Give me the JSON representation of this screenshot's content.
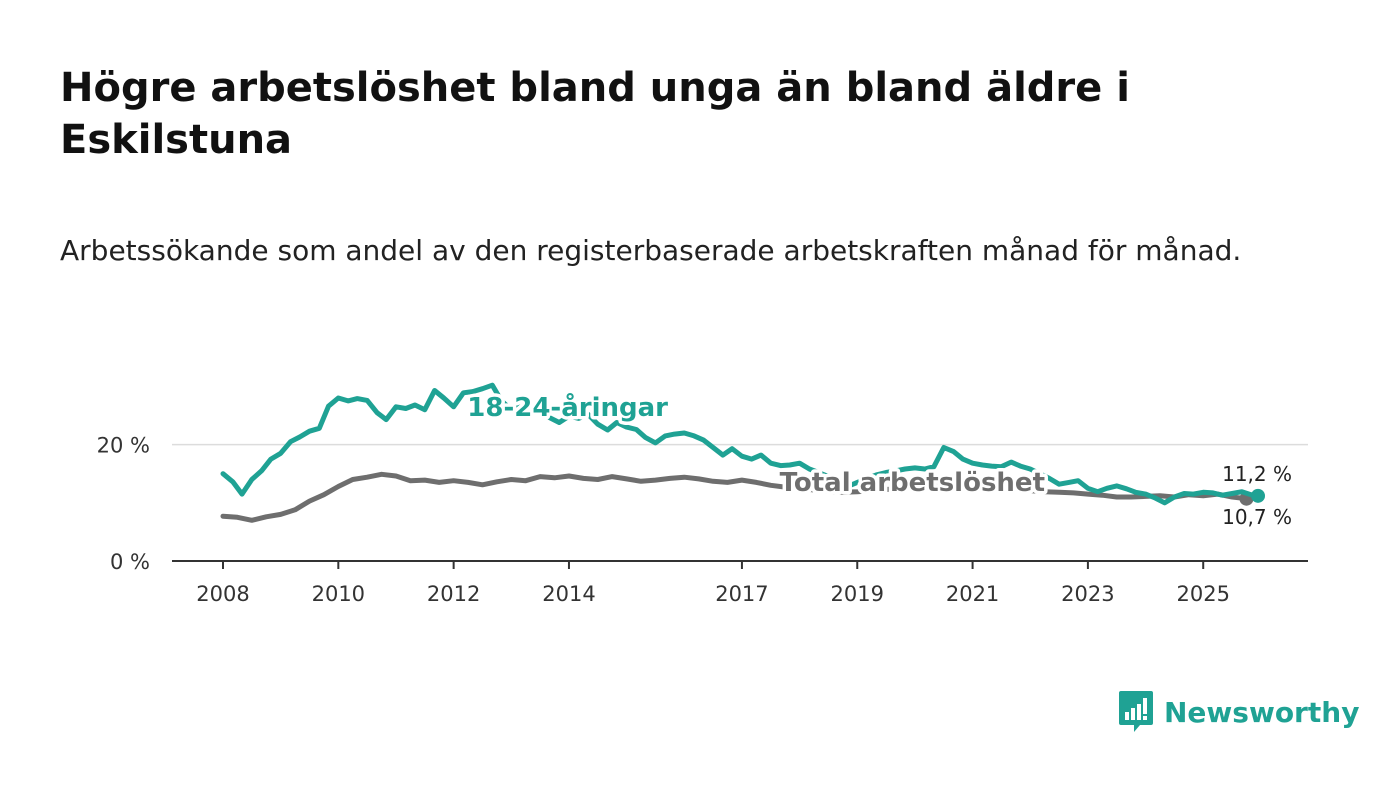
{
  "header": {
    "title": "Högre arbetslöshet bland unga än bland äldre i Eskilstuna",
    "subtitle": "Arbetssökande som andel av den registerbaserade arbetskraften månad för månad."
  },
  "brand": {
    "name": "Newsworthy",
    "color": "#1fa294",
    "icon": "bar-chart-speech-icon"
  },
  "chart_data": {
    "type": "line",
    "title": "Högre arbetslöshet bland unga än bland äldre i Eskilstuna",
    "subtitle": "Arbetssökande som andel av den registerbaserade arbetskraften månad för månad.",
    "xlabel": "",
    "ylabel": "",
    "xlim": [
      2008.0,
      2025.95
    ],
    "ylim": [
      0,
      33
    ],
    "grid": true,
    "legend": "inline labels",
    "y_ticks": [
      {
        "value": 0,
        "label": "0 %"
      },
      {
        "value": 20,
        "label": "20 %"
      }
    ],
    "x_ticks": [
      {
        "value": 2008,
        "label": "2008"
      },
      {
        "value": 2010,
        "label": "2010"
      },
      {
        "value": 2012,
        "label": "2012"
      },
      {
        "value": 2014,
        "label": "2014"
      },
      {
        "value": 2017,
        "label": "2017"
      },
      {
        "value": 2019,
        "label": "2019"
      },
      {
        "value": 2021,
        "label": "2021"
      },
      {
        "value": 2023,
        "label": "2023"
      },
      {
        "value": 2025,
        "label": "2025"
      }
    ],
    "series": [
      {
        "name": "Total arbetslöshet",
        "label": "Total arbetslöshet",
        "color": "#6e6e6e",
        "end_label": "10,7 %",
        "points": [
          [
            2008.0,
            7.7
          ],
          [
            2008.25,
            7.5
          ],
          [
            2008.5,
            7.0
          ],
          [
            2008.75,
            7.6
          ],
          [
            2009.0,
            8.0
          ],
          [
            2009.25,
            8.8
          ],
          [
            2009.5,
            10.3
          ],
          [
            2009.75,
            11.4
          ],
          [
            2010.0,
            12.8
          ],
          [
            2010.25,
            14.0
          ],
          [
            2010.5,
            14.4
          ],
          [
            2010.75,
            14.9
          ],
          [
            2011.0,
            14.6
          ],
          [
            2011.25,
            13.8
          ],
          [
            2011.5,
            13.9
          ],
          [
            2011.75,
            13.5
          ],
          [
            2012.0,
            13.8
          ],
          [
            2012.25,
            13.5
          ],
          [
            2012.5,
            13.1
          ],
          [
            2012.75,
            13.6
          ],
          [
            2013.0,
            14.0
          ],
          [
            2013.25,
            13.8
          ],
          [
            2013.5,
            14.5
          ],
          [
            2013.75,
            14.3
          ],
          [
            2014.0,
            14.6
          ],
          [
            2014.25,
            14.2
          ],
          [
            2014.5,
            14.0
          ],
          [
            2014.75,
            14.5
          ],
          [
            2015.0,
            14.1
          ],
          [
            2015.25,
            13.7
          ],
          [
            2015.5,
            13.9
          ],
          [
            2015.75,
            14.2
          ],
          [
            2016.0,
            14.4
          ],
          [
            2016.25,
            14.1
          ],
          [
            2016.5,
            13.7
          ],
          [
            2016.75,
            13.5
          ],
          [
            2017.0,
            13.9
          ],
          [
            2017.25,
            13.5
          ],
          [
            2017.5,
            13.0
          ],
          [
            2017.75,
            12.7
          ],
          [
            2018.0,
            12.5
          ],
          [
            2018.25,
            12.2
          ],
          [
            2018.5,
            12.0
          ],
          [
            2018.75,
            11.8
          ],
          [
            2019.0,
            11.9
          ],
          [
            2019.25,
            12.1
          ],
          [
            2019.5,
            12.3
          ],
          [
            2019.75,
            12.4
          ],
          [
            2020.0,
            12.6
          ],
          [
            2020.25,
            13.2
          ],
          [
            2020.5,
            13.6
          ],
          [
            2020.75,
            13.3
          ],
          [
            2021.0,
            13.0
          ],
          [
            2021.25,
            12.8
          ],
          [
            2021.5,
            12.5
          ],
          [
            2021.75,
            12.3
          ],
          [
            2022.0,
            12.1
          ],
          [
            2022.25,
            11.9
          ],
          [
            2022.5,
            11.8
          ],
          [
            2022.75,
            11.7
          ],
          [
            2023.0,
            11.5
          ],
          [
            2023.25,
            11.3
          ],
          [
            2023.5,
            11.0
          ],
          [
            2023.75,
            11.0
          ],
          [
            2024.0,
            11.1
          ],
          [
            2024.25,
            11.2
          ],
          [
            2024.5,
            11.0
          ],
          [
            2024.75,
            11.4
          ],
          [
            2025.0,
            11.2
          ],
          [
            2025.25,
            11.5
          ],
          [
            2025.5,
            11.0
          ],
          [
            2025.75,
            10.7
          ]
        ]
      },
      {
        "name": "18-24-åringar",
        "label": "18-24-åringar",
        "color": "#1fa294",
        "end_label": "11,2 %",
        "points": [
          [
            2008.0,
            15.0
          ],
          [
            2008.17,
            13.6
          ],
          [
            2008.33,
            11.5
          ],
          [
            2008.5,
            14.0
          ],
          [
            2008.67,
            15.5
          ],
          [
            2008.83,
            17.5
          ],
          [
            2009.0,
            18.5
          ],
          [
            2009.17,
            20.5
          ],
          [
            2009.33,
            21.3
          ],
          [
            2009.5,
            22.3
          ],
          [
            2009.67,
            22.8
          ],
          [
            2009.83,
            26.6
          ],
          [
            2010.0,
            28.0
          ],
          [
            2010.17,
            27.5
          ],
          [
            2010.33,
            27.9
          ],
          [
            2010.5,
            27.6
          ],
          [
            2010.67,
            25.5
          ],
          [
            2010.83,
            24.3
          ],
          [
            2011.0,
            26.5
          ],
          [
            2011.17,
            26.2
          ],
          [
            2011.33,
            26.8
          ],
          [
            2011.5,
            26.0
          ],
          [
            2011.67,
            29.3
          ],
          [
            2011.83,
            28.0
          ],
          [
            2012.0,
            26.5
          ],
          [
            2012.17,
            28.9
          ],
          [
            2012.33,
            29.1
          ],
          [
            2012.5,
            29.6
          ],
          [
            2012.67,
            30.2
          ],
          [
            2012.83,
            27.5
          ],
          [
            2013.0,
            26.0
          ],
          [
            2013.17,
            26.5
          ],
          [
            2013.33,
            26.0
          ],
          [
            2013.5,
            25.5
          ],
          [
            2013.67,
            24.6
          ],
          [
            2013.83,
            23.8
          ],
          [
            2014.0,
            24.9
          ],
          [
            2014.17,
            24.5
          ],
          [
            2014.33,
            25.2
          ],
          [
            2014.5,
            23.5
          ],
          [
            2014.67,
            22.5
          ],
          [
            2014.83,
            23.8
          ],
          [
            2015.0,
            23.0
          ],
          [
            2015.17,
            22.6
          ],
          [
            2015.33,
            21.2
          ],
          [
            2015.5,
            20.3
          ],
          [
            2015.67,
            21.5
          ],
          [
            2015.83,
            21.8
          ],
          [
            2016.0,
            22.0
          ],
          [
            2016.17,
            21.5
          ],
          [
            2016.33,
            20.8
          ],
          [
            2016.5,
            19.5
          ],
          [
            2016.67,
            18.2
          ],
          [
            2016.83,
            19.3
          ],
          [
            2017.0,
            18.0
          ],
          [
            2017.17,
            17.5
          ],
          [
            2017.33,
            18.2
          ],
          [
            2017.5,
            16.8
          ],
          [
            2017.67,
            16.4
          ],
          [
            2017.83,
            16.5
          ],
          [
            2018.0,
            16.8
          ],
          [
            2018.17,
            15.8
          ],
          [
            2018.33,
            15.2
          ],
          [
            2018.5,
            14.5
          ],
          [
            2018.67,
            13.5
          ],
          [
            2018.83,
            12.8
          ],
          [
            2019.0,
            13.5
          ],
          [
            2019.17,
            14.2
          ],
          [
            2019.33,
            14.8
          ],
          [
            2019.5,
            15.2
          ],
          [
            2019.67,
            15.5
          ],
          [
            2019.83,
            15.8
          ],
          [
            2020.0,
            16.0
          ],
          [
            2020.17,
            15.8
          ],
          [
            2020.33,
            16.2
          ],
          [
            2020.5,
            19.5
          ],
          [
            2020.67,
            18.8
          ],
          [
            2020.83,
            17.5
          ],
          [
            2021.0,
            16.8
          ],
          [
            2021.17,
            16.5
          ],
          [
            2021.33,
            16.3
          ],
          [
            2021.5,
            16.2
          ],
          [
            2021.67,
            17.0
          ],
          [
            2021.83,
            16.3
          ],
          [
            2022.0,
            15.8
          ],
          [
            2022.17,
            15.0
          ],
          [
            2022.33,
            14.2
          ],
          [
            2022.5,
            13.2
          ],
          [
            2022.67,
            13.5
          ],
          [
            2022.83,
            13.8
          ],
          [
            2023.0,
            12.5
          ],
          [
            2023.17,
            11.9
          ],
          [
            2023.33,
            12.5
          ],
          [
            2023.5,
            12.9
          ],
          [
            2023.67,
            12.4
          ],
          [
            2023.83,
            11.8
          ],
          [
            2024.0,
            11.5
          ],
          [
            2024.17,
            10.8
          ],
          [
            2024.33,
            10.0
          ],
          [
            2024.5,
            11.0
          ],
          [
            2024.67,
            11.6
          ],
          [
            2024.83,
            11.5
          ],
          [
            2025.0,
            11.8
          ],
          [
            2025.17,
            11.7
          ],
          [
            2025.33,
            11.3
          ],
          [
            2025.5,
            11.6
          ],
          [
            2025.67,
            11.9
          ],
          [
            2025.83,
            11.4
          ],
          [
            2025.95,
            11.2
          ]
        ]
      }
    ]
  }
}
